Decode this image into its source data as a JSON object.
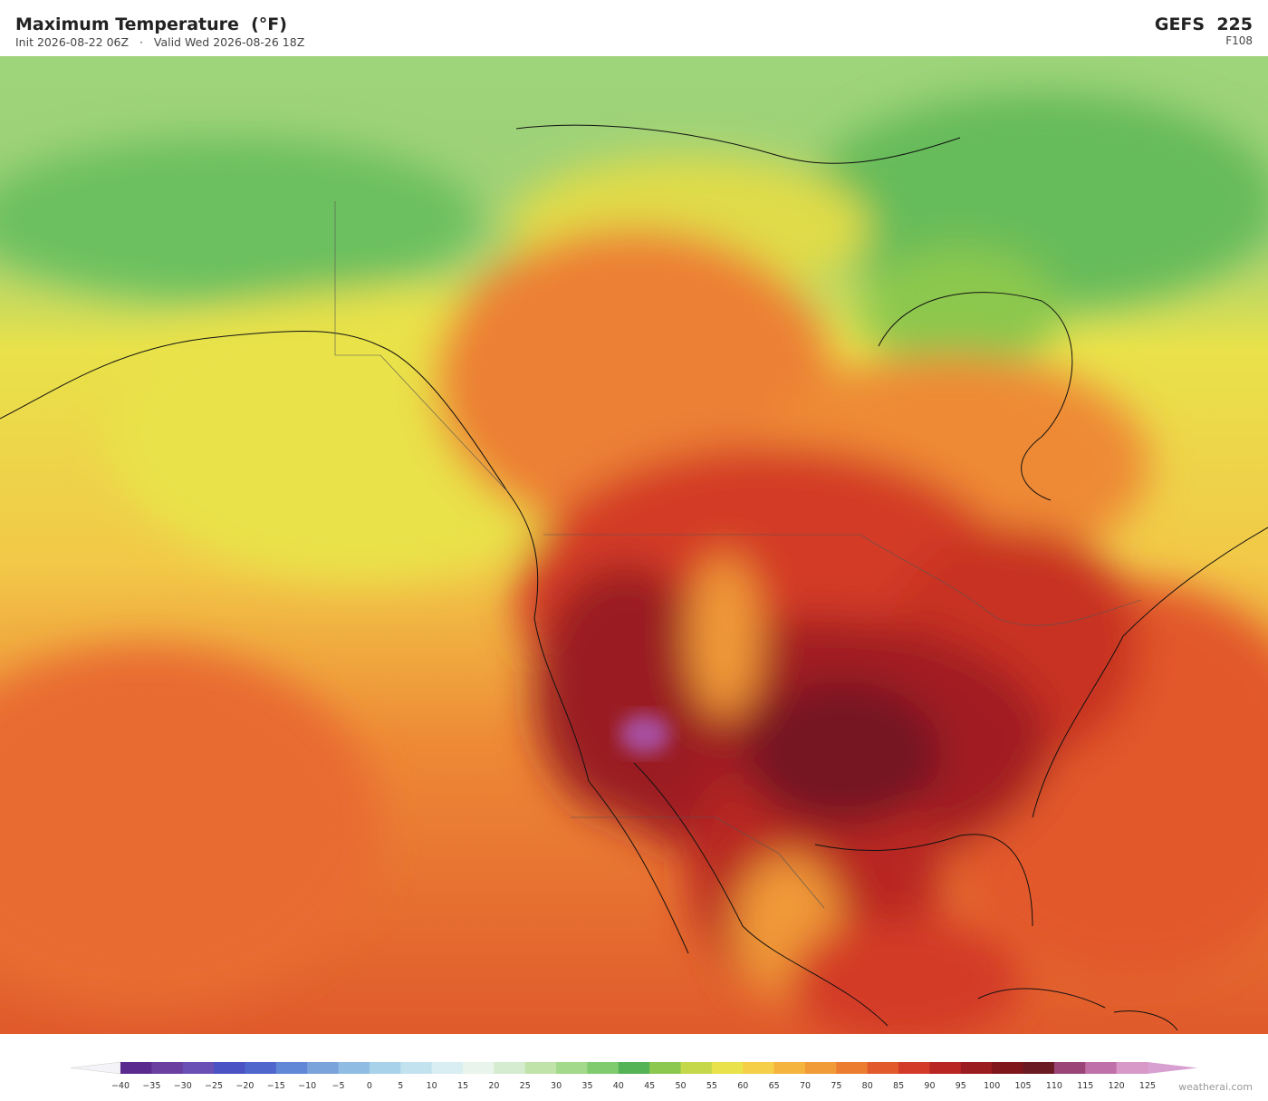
{
  "header": {
    "title": "Maximum Temperature  (°F)",
    "init": "Init 2026-08-22 06Z",
    "separator": "·",
    "valid": "Valid Wed 2026-08-26 18Z",
    "model": "GEFS  225",
    "forecast_hour": "F108"
  },
  "colorbar": {
    "ticks": [
      {
        "value": -40,
        "label": "−40"
      },
      {
        "value": -35,
        "label": "−35"
      },
      {
        "value": -30,
        "label": "−30"
      },
      {
        "value": -25,
        "label": "−25"
      },
      {
        "value": -20,
        "label": "−20"
      },
      {
        "value": -15,
        "label": "−15"
      },
      {
        "value": -10,
        "label": "−10"
      },
      {
        "value": -5,
        "label": "−5"
      },
      0,
      5,
      10,
      15,
      20,
      25,
      30,
      35,
      40,
      45,
      50,
      55,
      60,
      65,
      70,
      75,
      80,
      85,
      90,
      95,
      100,
      105,
      110,
      115,
      120,
      125
    ],
    "colors": [
      "#5b2a8e",
      "#6b3fa0",
      "#6a4fb4",
      "#4a52c4",
      "#4f66cc",
      "#6088d6",
      "#7aa3dc",
      "#8fbce2",
      "#a8d2ea",
      "#c3e2ef",
      "#d9eef2",
      "#e8f4ec",
      "#d5ecd0",
      "#bfe3a8",
      "#a2d98a",
      "#7fcb6e",
      "#55b255",
      "#8cc84e",
      "#c5d84a",
      "#e9e24a",
      "#f5cf48",
      "#f4b43e",
      "#f09a38",
      "#eb7c30",
      "#e2592b",
      "#d33a27",
      "#b82523",
      "#9a1b20",
      "#7e161c",
      "#6a1a22",
      "#9a4478",
      "#c070a8",
      "#d898c8"
    ],
    "extend_low": "#f4f4f8",
    "extend_high": "#d8a0d0"
  },
  "watermark": "weatherai.com"
}
